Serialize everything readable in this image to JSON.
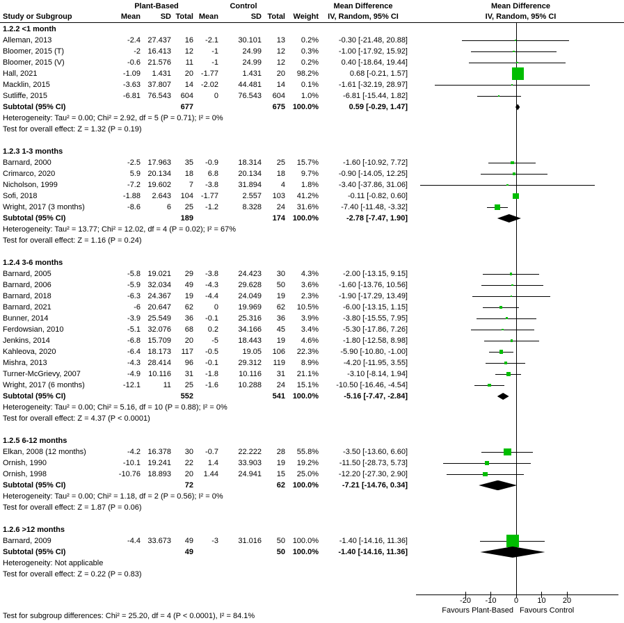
{
  "header": {
    "study": "Study or Subgroup",
    "group1": "Plant-Based",
    "group2": "Control",
    "mean": "Mean",
    "sd": "SD",
    "total": "Total",
    "weight": "Weight",
    "effect": "Mean Difference",
    "effect_method": "IV, Random, 95% CI"
  },
  "colors": {
    "square_green": "#00bd00",
    "diamond_black": "#000000",
    "line_black": "#000000"
  },
  "chart_data": {
    "type": "scatter",
    "variant": "forest-plot",
    "title": "Mean Difference",
    "method": "IV, Random, 95% CI",
    "xlim": [
      -39,
      41
    ],
    "x_ticks": [
      -20,
      -10,
      0,
      10,
      20
    ],
    "favours_left": "Favours Plant-Based",
    "favours_right": "Favours Control",
    "subgroup_difference_test": "Test for subgroup differences: Chi² = 25.20, df = 4 (P < 0.0001), I² = 84.1%",
    "groups": [
      {
        "id_label": "1.2.2 <1 month",
        "studies": [
          {
            "name": "Alleman, 2013",
            "pb_mean": "-2.4",
            "pb_sd": "27.437",
            "pb_total": "16",
            "c_mean": "-2.1",
            "c_sd": "30.101",
            "c_total": "13",
            "weight": "0.2%",
            "ci_label": "-0.30 [-21.48, 20.88]",
            "md": -0.3,
            "lo": -21.48,
            "hi": 20.88,
            "w": 0.2
          },
          {
            "name": "Bloomer, 2015 (T)",
            "pb_mean": "-2",
            "pb_sd": "16.413",
            "pb_total": "12",
            "c_mean": "-1",
            "c_sd": "24.99",
            "c_total": "12",
            "weight": "0.3%",
            "ci_label": "-1.00 [-17.92, 15.92]",
            "md": -1.0,
            "lo": -17.92,
            "hi": 15.92,
            "w": 0.3
          },
          {
            "name": "Bloomer, 2015 (V)",
            "pb_mean": "-0.6",
            "pb_sd": "21.576",
            "pb_total": "11",
            "c_mean": "-1",
            "c_sd": "24.99",
            "c_total": "12",
            "weight": "0.2%",
            "ci_label": "0.40 [-18.64, 19.44]",
            "md": 0.4,
            "lo": -18.64,
            "hi": 19.44,
            "w": 0.2
          },
          {
            "name": "Hall, 2021",
            "pb_mean": "-1.09",
            "pb_sd": "1.431",
            "pb_total": "20",
            "c_mean": "-1.77",
            "c_sd": "1.431",
            "c_total": "20",
            "weight": "98.2%",
            "ci_label": "0.68 [-0.21, 1.57]",
            "md": 0.68,
            "lo": -0.21,
            "hi": 1.57,
            "w": 98.2
          },
          {
            "name": "Macklin, 2015",
            "pb_mean": "-3.63",
            "pb_sd": "37.807",
            "pb_total": "14",
            "c_mean": "-2.02",
            "c_sd": "44.481",
            "c_total": "14",
            "weight": "0.1%",
            "ci_label": "-1.61 [-32.19, 28.97]",
            "md": -1.61,
            "lo": -32.19,
            "hi": 28.97,
            "w": 0.1
          },
          {
            "name": "Sutliffe, 2015",
            "pb_mean": "-6.81",
            "pb_sd": "76.543",
            "pb_total": "604",
            "c_mean": "0",
            "c_sd": "76.543",
            "c_total": "604",
            "weight": "1.0%",
            "ci_label": "-6.81 [-15.44, 1.82]",
            "md": -6.81,
            "lo": -15.44,
            "hi": 1.82,
            "w": 1.0
          }
        ],
        "subtotal": {
          "label": "Subtotal (95% CI)",
          "pb_total": "677",
          "c_total": "675",
          "weight": "100.0%",
          "ci_label": "0.59 [-0.29, 1.47]",
          "md": 0.59,
          "lo": -0.29,
          "hi": 1.47
        },
        "heterogeneity": "Heterogeneity: Tau² = 0.00; Chi² = 2.92, df = 5 (P = 0.71); I² = 0%",
        "overall_effect": "Test for overall effect: Z = 1.32 (P = 0.19)"
      },
      {
        "id_label": "1.2.3 1-3 months",
        "studies": [
          {
            "name": "Barnard, 2000",
            "pb_mean": "-2.5",
            "pb_sd": "17.963",
            "pb_total": "35",
            "c_mean": "-0.9",
            "c_sd": "18.314",
            "c_total": "25",
            "weight": "15.7%",
            "ci_label": "-1.60 [-10.92, 7.72]",
            "md": -1.6,
            "lo": -10.92,
            "hi": 7.72,
            "w": 15.7
          },
          {
            "name": "Crimarco, 2020",
            "pb_mean": "5.9",
            "pb_sd": "20.134",
            "pb_total": "18",
            "c_mean": "6.8",
            "c_sd": "20.134",
            "c_total": "18",
            "weight": "9.7%",
            "ci_label": "-0.90 [-14.05, 12.25]",
            "md": -0.9,
            "lo": -14.05,
            "hi": 12.25,
            "w": 9.7
          },
          {
            "name": "Nicholson, 1999",
            "pb_mean": "-7.2",
            "pb_sd": "19.602",
            "pb_total": "7",
            "c_mean": "-3.8",
            "c_sd": "31.894",
            "c_total": "4",
            "weight": "1.8%",
            "ci_label": "-3.40 [-37.86, 31.06]",
            "md": -3.4,
            "lo": -37.86,
            "hi": 31.06,
            "w": 1.8
          },
          {
            "name": "Sofi, 2018",
            "pb_mean": "-1.88",
            "pb_sd": "2.643",
            "pb_total": "104",
            "c_mean": "-1.77",
            "c_sd": "2.557",
            "c_total": "103",
            "weight": "41.2%",
            "ci_label": "-0.11 [-0.82, 0.60]",
            "md": -0.11,
            "lo": -0.82,
            "hi": 0.6,
            "w": 41.2
          },
          {
            "name": "Wright, 2017 (3 months)",
            "pb_mean": "-8.6",
            "pb_sd": "6",
            "pb_total": "25",
            "c_mean": "-1.2",
            "c_sd": "8.328",
            "c_total": "24",
            "weight": "31.6%",
            "ci_label": "-7.40 [-11.48, -3.32]",
            "md": -7.4,
            "lo": -11.48,
            "hi": -3.32,
            "w": 31.6
          }
        ],
        "subtotal": {
          "label": "Subtotal (95% CI)",
          "pb_total": "189",
          "c_total": "174",
          "weight": "100.0%",
          "ci_label": "-2.78 [-7.47, 1.90]",
          "md": -2.78,
          "lo": -7.47,
          "hi": 1.9
        },
        "heterogeneity": "Heterogeneity: Tau² = 13.77; Chi² = 12.02, df = 4 (P = 0.02); I² = 67%",
        "overall_effect": "Test for overall effect: Z = 1.16 (P = 0.24)"
      },
      {
        "id_label": "1.2.4 3-6 months",
        "studies": [
          {
            "name": "Barnard, 2005",
            "pb_mean": "-5.8",
            "pb_sd": "19.021",
            "pb_total": "29",
            "c_mean": "-3.8",
            "c_sd": "24.423",
            "c_total": "30",
            "weight": "4.3%",
            "ci_label": "-2.00 [-13.15, 9.15]",
            "md": -2.0,
            "lo": -13.15,
            "hi": 9.15,
            "w": 4.3
          },
          {
            "name": "Barnard, 2006",
            "pb_mean": "-5.9",
            "pb_sd": "32.034",
            "pb_total": "49",
            "c_mean": "-4.3",
            "c_sd": "29.628",
            "c_total": "50",
            "weight": "3.6%",
            "ci_label": "-1.60 [-13.76, 10.56]",
            "md": -1.6,
            "lo": -13.76,
            "hi": 10.56,
            "w": 3.6
          },
          {
            "name": "Barnard, 2018",
            "pb_mean": "-6.3",
            "pb_sd": "24.367",
            "pb_total": "19",
            "c_mean": "-4.4",
            "c_sd": "24.049",
            "c_total": "19",
            "weight": "2.3%",
            "ci_label": "-1.90 [-17.29, 13.49]",
            "md": -1.9,
            "lo": -17.29,
            "hi": 13.49,
            "w": 2.3
          },
          {
            "name": "Barnard, 2021",
            "pb_mean": "-6",
            "pb_sd": "20.647",
            "pb_total": "62",
            "c_mean": "0",
            "c_sd": "19.969",
            "c_total": "62",
            "weight": "10.5%",
            "ci_label": "-6.00 [-13.15, 1.15]",
            "md": -6.0,
            "lo": -13.15,
            "hi": 1.15,
            "w": 10.5
          },
          {
            "name": "Bunner, 2014",
            "pb_mean": "-3.9",
            "pb_sd": "25.549",
            "pb_total": "36",
            "c_mean": "-0.1",
            "c_sd": "25.316",
            "c_total": "36",
            "weight": "3.9%",
            "ci_label": "-3.80 [-15.55, 7.95]",
            "md": -3.8,
            "lo": -15.55,
            "hi": 7.95,
            "w": 3.9
          },
          {
            "name": "Ferdowsian, 2010",
            "pb_mean": "-5.1",
            "pb_sd": "32.076",
            "pb_total": "68",
            "c_mean": "0.2",
            "c_sd": "34.166",
            "c_total": "45",
            "weight": "3.4%",
            "ci_label": "-5.30 [-17.86, 7.26]",
            "md": -5.3,
            "lo": -17.86,
            "hi": 7.26,
            "w": 3.4
          },
          {
            "name": "Jenkins, 2014",
            "pb_mean": "-6.8",
            "pb_sd": "15.709",
            "pb_total": "20",
            "c_mean": "-5",
            "c_sd": "18.443",
            "c_total": "19",
            "weight": "4.6%",
            "ci_label": "-1.80 [-12.58, 8.98]",
            "md": -1.8,
            "lo": -12.58,
            "hi": 8.98,
            "w": 4.6
          },
          {
            "name": "Kahleova, 2020",
            "pb_mean": "-6.4",
            "pb_sd": "18.173",
            "pb_total": "117",
            "c_mean": "-0.5",
            "c_sd": "19.05",
            "c_total": "106",
            "weight": "22.3%",
            "ci_label": "-5.90 [-10.80, -1.00]",
            "md": -5.9,
            "lo": -10.8,
            "hi": -1.0,
            "w": 22.3
          },
          {
            "name": "Mishra, 2013",
            "pb_mean": "-4.3",
            "pb_sd": "28.414",
            "pb_total": "96",
            "c_mean": "-0.1",
            "c_sd": "29.312",
            "c_total": "119",
            "weight": "8.9%",
            "ci_label": "-4.20 [-11.95, 3.55]",
            "md": -4.2,
            "lo": -11.95,
            "hi": 3.55,
            "w": 8.9
          },
          {
            "name": "Turner-McGrievy, 2007",
            "pb_mean": "-4.9",
            "pb_sd": "10.116",
            "pb_total": "31",
            "c_mean": "-1.8",
            "c_sd": "10.116",
            "c_total": "31",
            "weight": "21.1%",
            "ci_label": "-3.10 [-8.14, 1.94]",
            "md": -3.1,
            "lo": -8.14,
            "hi": 1.94,
            "w": 21.1
          },
          {
            "name": "Wright, 2017 (6 months)",
            "pb_mean": "-12.1",
            "pb_sd": "11",
            "pb_total": "25",
            "c_mean": "-1.6",
            "c_sd": "10.288",
            "c_total": "24",
            "weight": "15.1%",
            "ci_label": "-10.50 [-16.46, -4.54]",
            "md": -10.5,
            "lo": -16.46,
            "hi": -4.54,
            "w": 15.1
          }
        ],
        "subtotal": {
          "label": "Subtotal (95% CI)",
          "pb_total": "552",
          "c_total": "541",
          "weight": "100.0%",
          "ci_label": "-5.16 [-7.47, -2.84]",
          "md": -5.16,
          "lo": -7.47,
          "hi": -2.84
        },
        "heterogeneity": "Heterogeneity: Tau² = 0.00; Chi² = 5.16, df = 10 (P = 0.88); I² = 0%",
        "overall_effect": "Test for overall effect: Z = 4.37 (P < 0.0001)"
      },
      {
        "id_label": "1.2.5 6-12 months",
        "studies": [
          {
            "name": "Elkan, 2008 (12 months)",
            "pb_mean": "-4.2",
            "pb_sd": "16.378",
            "pb_total": "30",
            "c_mean": "-0.7",
            "c_sd": "22.222",
            "c_total": "28",
            "weight": "55.8%",
            "ci_label": "-3.50 [-13.60, 6.60]",
            "md": -3.5,
            "lo": -13.6,
            "hi": 6.6,
            "w": 55.8
          },
          {
            "name": "Ornish, 1990",
            "pb_mean": "-10.1",
            "pb_sd": "19.241",
            "pb_total": "22",
            "c_mean": "1.4",
            "c_sd": "33.903",
            "c_total": "19",
            "weight": "19.2%",
            "ci_label": "-11.50 [-28.73, 5.73]",
            "md": -11.5,
            "lo": -28.73,
            "hi": 5.73,
            "w": 19.2
          },
          {
            "name": "Ornish, 1998",
            "pb_mean": "-10.76",
            "pb_sd": "18.893",
            "pb_total": "20",
            "c_mean": "1.44",
            "c_sd": "24.941",
            "c_total": "15",
            "weight": "25.0%",
            "ci_label": "-12.20 [-27.30, 2.90]",
            "md": -12.2,
            "lo": -27.3,
            "hi": 2.9,
            "w": 25.0
          }
        ],
        "subtotal": {
          "label": "Subtotal (95% CI)",
          "pb_total": "72",
          "c_total": "62",
          "weight": "100.0%",
          "ci_label": "-7.21 [-14.76, 0.34]",
          "md": -7.21,
          "lo": -14.76,
          "hi": 0.34
        },
        "heterogeneity": "Heterogeneity: Tau² = 0.00; Chi² = 1.18, df = 2 (P = 0.56); I² = 0%",
        "overall_effect": "Test for overall effect: Z = 1.87 (P = 0.06)"
      },
      {
        "id_label": "1.2.6 >12 months",
        "studies": [
          {
            "name": "Barnard, 2009",
            "pb_mean": "-4.4",
            "pb_sd": "33.673",
            "pb_total": "49",
            "c_mean": "-3",
            "c_sd": "31.016",
            "c_total": "50",
            "weight": "100.0%",
            "ci_label": "-1.40 [-14.16, 11.36]",
            "md": -1.4,
            "lo": -14.16,
            "hi": 11.36,
            "w": 100.0
          }
        ],
        "subtotal": {
          "label": "Subtotal (95% CI)",
          "pb_total": "49",
          "c_total": "50",
          "weight": "100.0%",
          "ci_label": "-1.40 [-14.16, 11.36]",
          "md": -1.4,
          "lo": -14.16,
          "hi": 11.36
        },
        "heterogeneity": "Heterogeneity: Not applicable",
        "overall_effect": "Test for overall effect: Z = 0.22 (P = 0.83)"
      }
    ]
  }
}
